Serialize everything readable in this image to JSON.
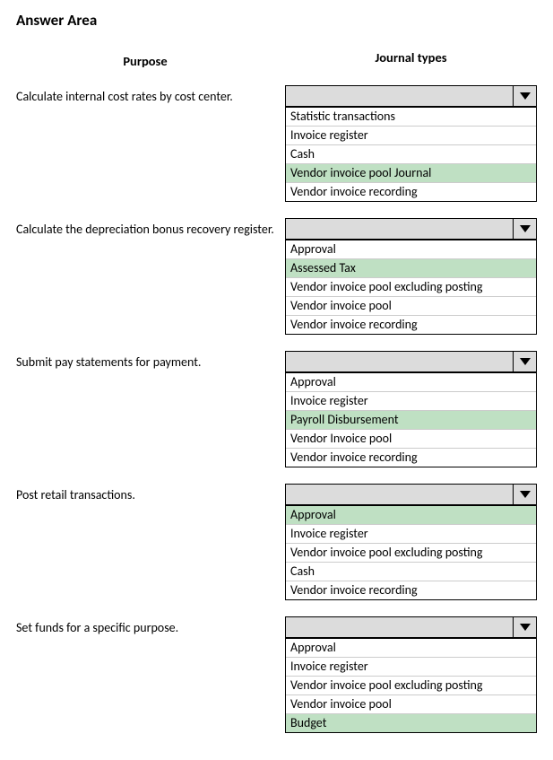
{
  "title": "Answer Area",
  "headings": {
    "purpose": "Purpose",
    "journal": "Journal types"
  },
  "highlight_color": "#bfe0c3",
  "rows": [
    {
      "purpose": "Calculate internal cost rates by cost center.",
      "selected": "",
      "options": [
        {
          "label": "Statistic transactions",
          "highlight": false
        },
        {
          "label": "Invoice register",
          "highlight": false
        },
        {
          "label": "Cash",
          "highlight": false
        },
        {
          "label": "Vendor invoice pool Journal",
          "highlight": true
        },
        {
          "label": "Vendor invoice recording",
          "highlight": false
        }
      ]
    },
    {
      "purpose": "Calculate the depreciation bonus recovery register.",
      "selected": "",
      "options": [
        {
          "label": "Approval",
          "highlight": false
        },
        {
          "label": "Assessed Tax",
          "highlight": true
        },
        {
          "label": "Vendor invoice pool excluding posting",
          "highlight": false
        },
        {
          "label": "Vendor invoice pool",
          "highlight": false
        },
        {
          "label": "Vendor invoice recording",
          "highlight": false
        }
      ]
    },
    {
      "purpose": "Submit pay statements for payment.",
      "selected": "",
      "options": [
        {
          "label": "Approval",
          "highlight": false
        },
        {
          "label": "Invoice register",
          "highlight": false
        },
        {
          "label": "Payroll Disbursement",
          "highlight": true
        },
        {
          "label": "Vendor Invoice pool",
          "highlight": false
        },
        {
          "label": "Vendor invoice recording",
          "highlight": false
        }
      ]
    },
    {
      "purpose": "Post retail transactions.",
      "selected": "",
      "options": [
        {
          "label": "Approval",
          "highlight": true
        },
        {
          "label": "Invoice register",
          "highlight": false
        },
        {
          "label": "Vendor invoice pool excluding posting",
          "highlight": false
        },
        {
          "label": "Cash",
          "highlight": false
        },
        {
          "label": "Vendor invoice recording",
          "highlight": false
        }
      ]
    },
    {
      "purpose": "Set funds for a specific purpose.",
      "selected": "",
      "options": [
        {
          "label": "Approval",
          "highlight": false
        },
        {
          "label": "Invoice register",
          "highlight": false
        },
        {
          "label": "Vendor invoice pool excluding posting",
          "highlight": false
        },
        {
          "label": "Vendor invoice pool",
          "highlight": false
        },
        {
          "label": "Budget",
          "highlight": true
        }
      ]
    }
  ]
}
